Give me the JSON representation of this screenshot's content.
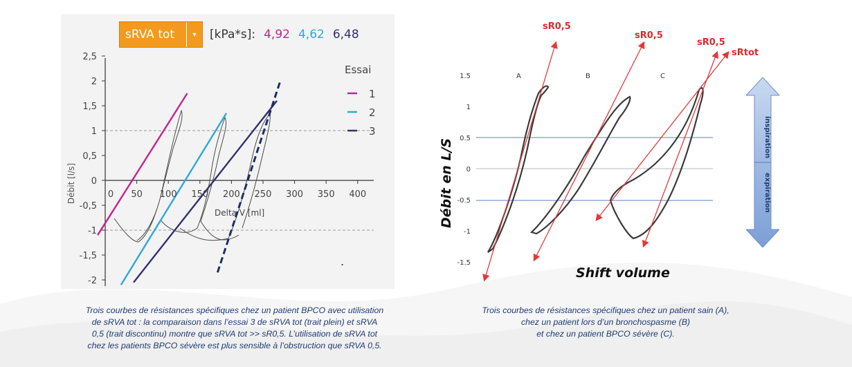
{
  "left_panel": {
    "dropdown": {
      "label": "sRVA tot",
      "arrow": "▾"
    },
    "unit_label": "[kPa*s]:",
    "values": [
      "4,92",
      "4,62",
      "6,48"
    ],
    "colors": {
      "essai1": "#c4238f",
      "essai2": "#2ea8d6",
      "essai3": "#33306e",
      "dropdown": "#f39a1e"
    },
    "legend_title": "Essai",
    "legend_items": [
      "1",
      "2",
      "3"
    ],
    "y_axis_label": "Débit [l/s]",
    "x_axis_label": "Delta V [ml]",
    "y_ticks": [
      "2,5",
      "2",
      "1,5",
      "1",
      "0,5",
      "0",
      "-0,5",
      "-1",
      "-1,5",
      "-2"
    ],
    "x_ticks": [
      "0",
      "50",
      "100",
      "150",
      "200",
      "250",
      "300",
      "350",
      "400"
    ],
    "dot": "."
  },
  "right_panel": {
    "y_axis_label": "Débit en L/S",
    "x_axis_label": "Shift volume",
    "y_ticks": [
      "1.5",
      "1",
      "0.5",
      "0",
      "-0.5",
      "-1",
      "-1.5"
    ],
    "curve_labels": [
      "A",
      "B",
      "C"
    ],
    "annotations": [
      "sR0,5",
      "sR0,5",
      "sR0,5",
      "sRtot"
    ],
    "arrow_labels": {
      "up": "inspiration",
      "down": "expiration"
    }
  },
  "captions": {
    "left": [
      "Trois courbes de résistances spécifiques chez un patient BPCO avec utilisation",
      "de sRVA tot : la comparaison dans l’essai 3 de sRVA tot (trait plein) et sRVA",
      "0,5 (trait discontinu) montre que sRVA tot >> sR0,5. L’utilisation de sRVA tot",
      "chez les patients BPCO sévère est plus sensible à l’obstruction que sRVA 0,5."
    ],
    "right": [
      "Trois courbes de résistances spécifiques chez un patient sain (A),",
      "chez un patient lors d’un bronchospasme (B)",
      "et chez un patient BPCO sévère (C)."
    ]
  },
  "chart_data": [
    {
      "type": "line",
      "title": "sRVA tot [kPa*s]: 4,92 4,62 6,48",
      "xlabel": "Delta V [ml]",
      "ylabel": "Débit [l/s]",
      "xlim": [
        -12,
        420
      ],
      "ylim": [
        -2.15,
        2.6
      ],
      "legend": "top-right",
      "series": [
        {
          "name": "1 (sRVA tot)",
          "x": [
            -12,
            130
          ],
          "y": [
            -1.1,
            1.75
          ]
        },
        {
          "name": "2 (sRVA tot)",
          "x": [
            25,
            192
          ],
          "y": [
            -2.1,
            1.35
          ]
        },
        {
          "name": "3 (sRVA tot)",
          "x": [
            45,
            272
          ],
          "y": [
            -2.05,
            1.6
          ]
        },
        {
          "name": "3 (sRVA 0,5, dashed)",
          "x": [
            178,
            278
          ],
          "y": [
            -1.85,
            2.02
          ]
        }
      ]
    },
    {
      "type": "line",
      "title": "",
      "xlabel": "Shift volume",
      "ylabel": "Débit en L/S",
      "ylim": [
        -1.5,
        1.5
      ],
      "reference_lines_y": [
        0.5,
        0,
        -0.5
      ],
      "series": [
        {
          "name": "A",
          "slope_label": "sR0,5"
        },
        {
          "name": "B",
          "slope_label": "sR0,5"
        },
        {
          "name": "C",
          "slope_labels": [
            "sR0,5",
            "sRtot"
          ]
        }
      ]
    }
  ]
}
